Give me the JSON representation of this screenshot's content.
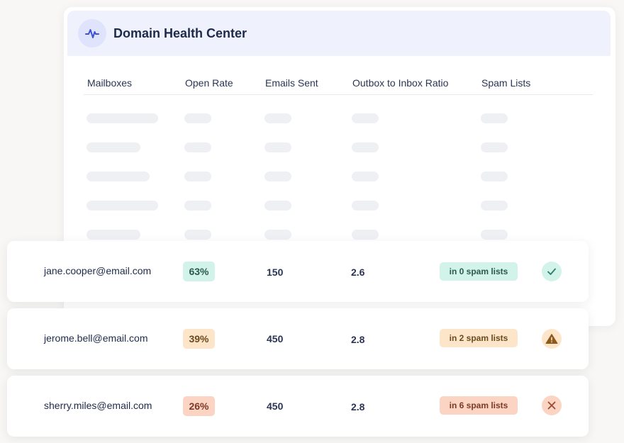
{
  "panel": {
    "title": "Domain Health Center",
    "icon": "activity-pulse-icon"
  },
  "columns": [
    "Mailboxes",
    "Open Rate",
    "Emails Sent",
    "Outbox to Inbox Ratio",
    "Spam Lists"
  ],
  "rows": [
    {
      "email": "jane.cooper@email.com",
      "open_rate": "63%",
      "emails_sent": "150",
      "ratio": "2.6",
      "spam": "in 0 spam lists",
      "status": "check-icon"
    },
    {
      "email": "jerome.bell@email.com",
      "open_rate": "39%",
      "emails_sent": "450",
      "ratio": "2.8",
      "spam": "in 2 spam lists",
      "status": "warning-icon"
    },
    {
      "email": "sherry.miles@email.com",
      "open_rate": "26%",
      "emails_sent": "450",
      "ratio": "2.8",
      "spam": "in 6 spam lists",
      "status": "error-x-icon"
    }
  ],
  "colors": {
    "good": "#d2f3ea",
    "warning": "#fde5c9",
    "bad": "#fbd4c4",
    "header_bg": "#eff1fd"
  }
}
